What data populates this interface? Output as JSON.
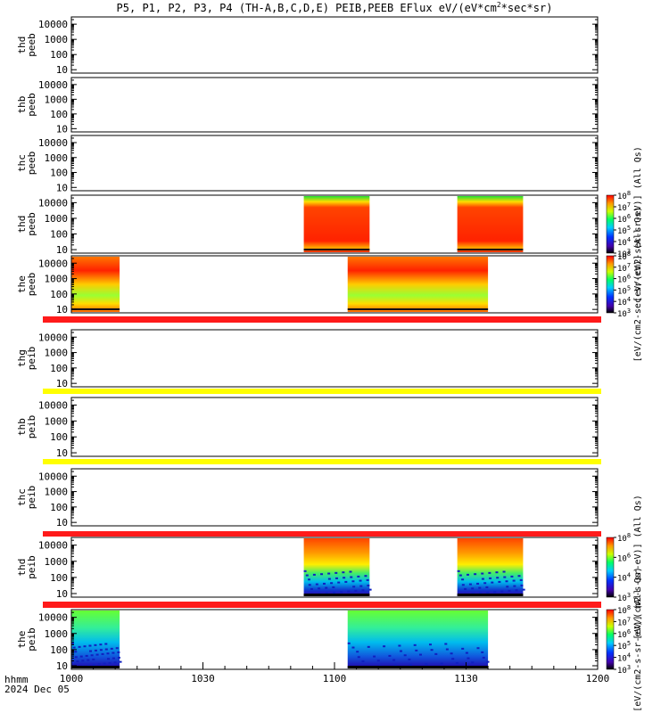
{
  "title": {
    "prefix": "P5, P1, P2, P3, P4 (TH-A,B,C,D,E) PEIB,PEEB EFlux eV/(eV*cm",
    "sup": "2",
    "suffix": "*sec*sr)"
  },
  "time_axis": {
    "label_line1": "hhmm",
    "label_line2": "2024 Dec 05",
    "ticks": [
      "1000",
      "1030",
      "1100",
      "1130",
      "1200"
    ],
    "tick_values_min": [
      0,
      30,
      60,
      90,
      120
    ],
    "range_min": [
      0,
      120
    ]
  },
  "colors": {
    "flag_red": "#ff1a1a",
    "flag_yellow": "#ffff00"
  },
  "chart_data": {
    "type": "heatmap",
    "y_scale": "log",
    "ylim_eV": [
      6,
      30000
    ],
    "y_ticks": [
      "10",
      "100",
      "1000",
      "10000"
    ],
    "y_tick_values": [
      10,
      100,
      1000,
      10000
    ],
    "panels": [
      {
        "probe": "thd",
        "product": "peeb",
        "intervals": []
      },
      {
        "probe": "thb",
        "product": "peeb",
        "intervals": []
      },
      {
        "probe": "thc",
        "product": "peeb",
        "intervals": []
      },
      {
        "probe": "thd",
        "product": "peeb",
        "intervals": [
          [
            53,
            68
          ],
          [
            88,
            103
          ]
        ]
      },
      {
        "probe": "the",
        "product": "peeb",
        "intervals": [
          [
            0,
            11
          ],
          [
            63,
            95
          ]
        ]
      },
      {
        "probe": "thg",
        "product": "peib",
        "intervals": []
      },
      {
        "probe": "thb",
        "product": "peib",
        "intervals": []
      },
      {
        "probe": "thc",
        "product": "peib",
        "intervals": []
      },
      {
        "probe": "thd",
        "product": "peib",
        "intervals": [
          [
            53,
            68
          ],
          [
            88,
            103
          ]
        ]
      },
      {
        "probe": "the",
        "product": "peib",
        "intervals": [
          [
            0,
            11
          ],
          [
            63,
            95
          ]
        ]
      }
    ],
    "colorbars": [
      {
        "label": "[eV/(cm2-sec-sr-eV)] (All Qs)",
        "ticks_exp": [
          "3",
          "4",
          "5",
          "6",
          "7",
          "8"
        ]
      },
      {
        "label": "[eV/(cm2-sec-sr-eV)] (All Qs)",
        "ticks_exp": [
          "3",
          "4",
          "5",
          "6",
          "7",
          "8"
        ]
      },
      {
        "label": "[eV/(cm2-s-sr-eV)] (All Qs)",
        "ticks_exp": [
          "3",
          "4",
          "6",
          "8"
        ]
      },
      {
        "label": "[eV/(cm2-s-sr-eV)] (All Qs)",
        "ticks_exp": [
          "3",
          "4",
          "5",
          "6",
          "7",
          "8"
        ]
      }
    ]
  }
}
